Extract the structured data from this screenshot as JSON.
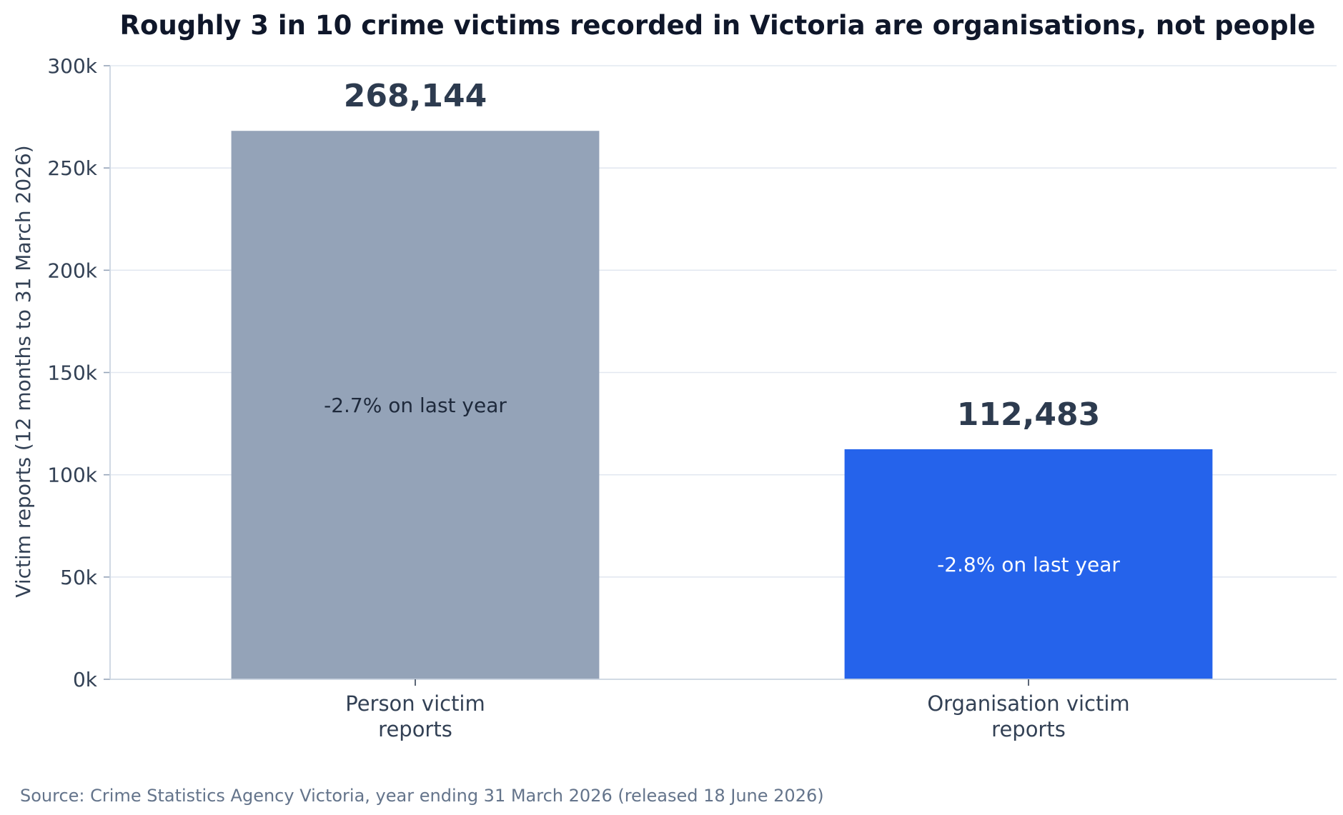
{
  "chart_data": {
    "type": "bar",
    "title": "Roughly 3 in 10 crime victims recorded in Victoria are organisations, not people",
    "xlabel": "",
    "ylabel": "Victim reports (12 months to 31 March 2026)",
    "ylim": [
      0,
      300000
    ],
    "yticks": [
      0,
      50000,
      100000,
      150000,
      200000,
      250000,
      300000
    ],
    "ytick_labels": [
      "0k",
      "50k",
      "100k",
      "150k",
      "200k",
      "250k",
      "300k"
    ],
    "grid": "horizontal",
    "categories": [
      "Person victim reports",
      "Organisation victim reports"
    ],
    "category_labels": [
      [
        "Person victim",
        "reports"
      ],
      [
        "Organisation victim",
        "reports"
      ]
    ],
    "values": [
      268144,
      112483
    ],
    "value_labels": [
      "268,144",
      "112,483"
    ],
    "annotations": [
      "-2.7% on last year",
      "-2.8% on last year"
    ],
    "colors": [
      "#94a3b8",
      "#2563eb"
    ],
    "annotation_colors": [
      "#1e293b",
      "#ffffff"
    ],
    "source": "Source: Crime Statistics Agency Victoria, year ending 31 March 2026 (released 18 June 2026)"
  }
}
